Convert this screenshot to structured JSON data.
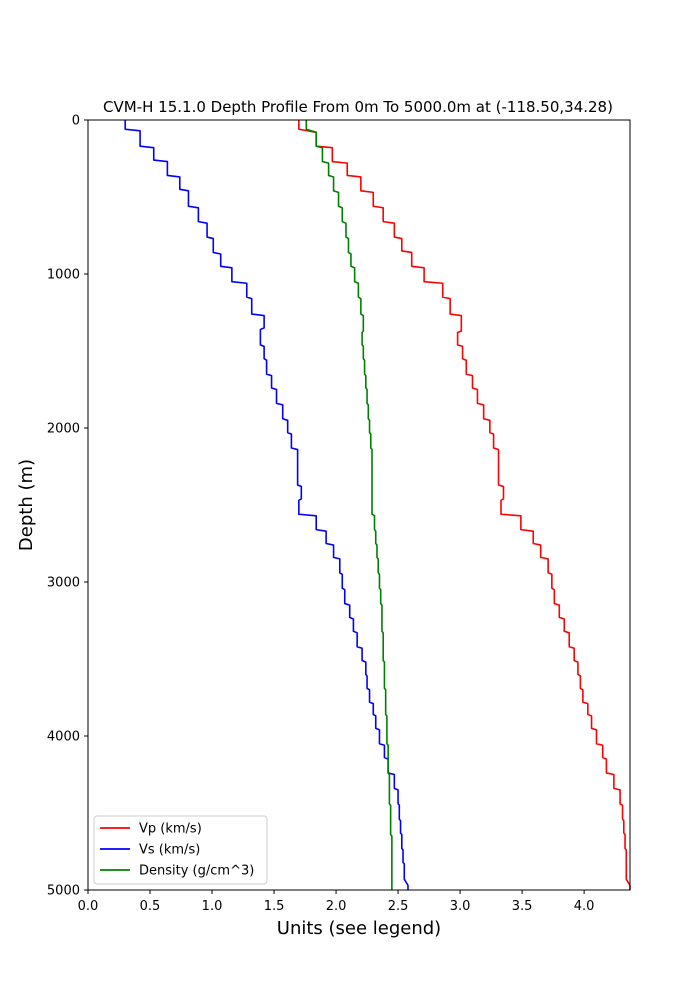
{
  "chart_data": {
    "type": "line",
    "title": "CVM-H 15.1.0 Depth Profile From 0m To 5000.0m at (-118.50,34.28)",
    "xlabel": "Units (see legend)",
    "ylabel": "Depth (m)",
    "xlim": [
      0.0,
      4.37
    ],
    "ylim": [
      5000,
      0
    ],
    "y_inverted": true,
    "grid": false,
    "legend_position": "lower-left",
    "xticks": [
      "0.0",
      "0.5",
      "1.0",
      "1.5",
      "2.0",
      "2.5",
      "3.0",
      "3.5",
      "4.0"
    ],
    "yticks": [
      "0",
      "1000",
      "2000",
      "3000",
      "4000",
      "5000"
    ],
    "series": [
      {
        "name": "Vp (km/s)",
        "color": "#ff0000",
        "points": [
          [
            1.7,
            0
          ],
          [
            1.7,
            60
          ],
          [
            1.84,
            80
          ],
          [
            1.84,
            170
          ],
          [
            1.97,
            180
          ],
          [
            1.97,
            270
          ],
          [
            2.09,
            280
          ],
          [
            2.09,
            360
          ],
          [
            2.2,
            370
          ],
          [
            2.2,
            460
          ],
          [
            2.3,
            470
          ],
          [
            2.3,
            560
          ],
          [
            2.38,
            570
          ],
          [
            2.38,
            660
          ],
          [
            2.47,
            670
          ],
          [
            2.47,
            760
          ],
          [
            2.53,
            770
          ],
          [
            2.53,
            850
          ],
          [
            2.61,
            860
          ],
          [
            2.61,
            950
          ],
          [
            2.71,
            960
          ],
          [
            2.71,
            1050
          ],
          [
            2.86,
            1060
          ],
          [
            2.86,
            1150
          ],
          [
            2.92,
            1160
          ],
          [
            2.92,
            1260
          ],
          [
            3.01,
            1270
          ],
          [
            3.01,
            1370
          ],
          [
            2.98,
            1380
          ],
          [
            2.98,
            1460
          ],
          [
            3.02,
            1470
          ],
          [
            3.02,
            1550
          ],
          [
            3.05,
            1560
          ],
          [
            3.05,
            1650
          ],
          [
            3.1,
            1660
          ],
          [
            3.1,
            1740
          ],
          [
            3.14,
            1750
          ],
          [
            3.14,
            1840
          ],
          [
            3.19,
            1850
          ],
          [
            3.19,
            1940
          ],
          [
            3.24,
            1950
          ],
          [
            3.24,
            2030
          ],
          [
            3.27,
            2040
          ],
          [
            3.27,
            2130
          ],
          [
            3.31,
            2140
          ],
          [
            3.31,
            2370
          ],
          [
            3.35,
            2380
          ],
          [
            3.35,
            2460
          ],
          [
            3.33,
            2470
          ],
          [
            3.33,
            2560
          ],
          [
            3.49,
            2570
          ],
          [
            3.49,
            2660
          ],
          [
            3.59,
            2670
          ],
          [
            3.59,
            2750
          ],
          [
            3.65,
            2760
          ],
          [
            3.65,
            2840
          ],
          [
            3.71,
            2850
          ],
          [
            3.71,
            2940
          ],
          [
            3.74,
            2950
          ],
          [
            3.74,
            3040
          ],
          [
            3.76,
            3050
          ],
          [
            3.76,
            3140
          ],
          [
            3.8,
            3150
          ],
          [
            3.8,
            3230
          ],
          [
            3.84,
            3240
          ],
          [
            3.84,
            3320
          ],
          [
            3.88,
            3330
          ],
          [
            3.88,
            3420
          ],
          [
            3.92,
            3430
          ],
          [
            3.92,
            3510
          ],
          [
            3.95,
            3520
          ],
          [
            3.95,
            3600
          ],
          [
            3.97,
            3610
          ],
          [
            3.97,
            3690
          ],
          [
            3.99,
            3700
          ],
          [
            3.99,
            3780
          ],
          [
            4.03,
            3790
          ],
          [
            4.03,
            3860
          ],
          [
            4.06,
            3870
          ],
          [
            4.06,
            3950
          ],
          [
            4.1,
            3960
          ],
          [
            4.1,
            4050
          ],
          [
            4.15,
            4060
          ],
          [
            4.15,
            4140
          ],
          [
            4.18,
            4150
          ],
          [
            4.18,
            4240
          ],
          [
            4.24,
            4250
          ],
          [
            4.24,
            4340
          ],
          [
            4.29,
            4350
          ],
          [
            4.29,
            4440
          ],
          [
            4.31,
            4450
          ],
          [
            4.31,
            4540
          ],
          [
            4.32,
            4550
          ],
          [
            4.32,
            4630
          ],
          [
            4.33,
            4640
          ],
          [
            4.33,
            4730
          ],
          [
            4.34,
            4740
          ],
          [
            4.34,
            4820
          ],
          [
            4.34,
            4830
          ],
          [
            4.34,
            4930
          ],
          [
            4.37,
            4970
          ],
          [
            4.37,
            5000
          ]
        ]
      },
      {
        "name": "Vs (km/s)",
        "color": "#0000ff",
        "points": [
          [
            0.3,
            0
          ],
          [
            0.3,
            60
          ],
          [
            0.42,
            70
          ],
          [
            0.42,
            170
          ],
          [
            0.53,
            180
          ],
          [
            0.53,
            260
          ],
          [
            0.64,
            270
          ],
          [
            0.64,
            360
          ],
          [
            0.74,
            370
          ],
          [
            0.74,
            450
          ],
          [
            0.81,
            460
          ],
          [
            0.81,
            560
          ],
          [
            0.89,
            570
          ],
          [
            0.89,
            660
          ],
          [
            0.96,
            670
          ],
          [
            0.96,
            760
          ],
          [
            1.01,
            770
          ],
          [
            1.01,
            860
          ],
          [
            1.07,
            870
          ],
          [
            1.07,
            950
          ],
          [
            1.16,
            960
          ],
          [
            1.16,
            1050
          ],
          [
            1.28,
            1060
          ],
          [
            1.28,
            1150
          ],
          [
            1.32,
            1160
          ],
          [
            1.32,
            1260
          ],
          [
            1.42,
            1270
          ],
          [
            1.42,
            1350
          ],
          [
            1.39,
            1360
          ],
          [
            1.39,
            1460
          ],
          [
            1.42,
            1470
          ],
          [
            1.42,
            1550
          ],
          [
            1.44,
            1560
          ],
          [
            1.44,
            1650
          ],
          [
            1.48,
            1660
          ],
          [
            1.48,
            1740
          ],
          [
            1.52,
            1750
          ],
          [
            1.52,
            1840
          ],
          [
            1.57,
            1850
          ],
          [
            1.57,
            1940
          ],
          [
            1.61,
            1950
          ],
          [
            1.61,
            2030
          ],
          [
            1.64,
            2040
          ],
          [
            1.64,
            2130
          ],
          [
            1.69,
            2140
          ],
          [
            1.69,
            2370
          ],
          [
            1.72,
            2380
          ],
          [
            1.72,
            2460
          ],
          [
            1.7,
            2470
          ],
          [
            1.7,
            2560
          ],
          [
            1.84,
            2570
          ],
          [
            1.84,
            2660
          ],
          [
            1.92,
            2670
          ],
          [
            1.92,
            2750
          ],
          [
            1.98,
            2760
          ],
          [
            1.98,
            2840
          ],
          [
            2.03,
            2850
          ],
          [
            2.03,
            2940
          ],
          [
            2.05,
            2950
          ],
          [
            2.05,
            3040
          ],
          [
            2.07,
            3050
          ],
          [
            2.07,
            3140
          ],
          [
            2.11,
            3150
          ],
          [
            2.11,
            3230
          ],
          [
            2.14,
            3240
          ],
          [
            2.14,
            3320
          ],
          [
            2.17,
            3330
          ],
          [
            2.17,
            3420
          ],
          [
            2.21,
            3430
          ],
          [
            2.21,
            3510
          ],
          [
            2.24,
            3520
          ],
          [
            2.24,
            3600
          ],
          [
            2.25,
            3610
          ],
          [
            2.25,
            3690
          ],
          [
            2.27,
            3700
          ],
          [
            2.27,
            3780
          ],
          [
            2.3,
            3790
          ],
          [
            2.3,
            3860
          ],
          [
            2.32,
            3870
          ],
          [
            2.32,
            3950
          ],
          [
            2.35,
            3960
          ],
          [
            2.35,
            4050
          ],
          [
            2.39,
            4060
          ],
          [
            2.39,
            4140
          ],
          [
            2.42,
            4150
          ],
          [
            2.42,
            4240
          ],
          [
            2.47,
            4250
          ],
          [
            2.47,
            4340
          ],
          [
            2.5,
            4350
          ],
          [
            2.5,
            4440
          ],
          [
            2.51,
            4450
          ],
          [
            2.51,
            4540
          ],
          [
            2.52,
            4550
          ],
          [
            2.52,
            4630
          ],
          [
            2.53,
            4640
          ],
          [
            2.53,
            4730
          ],
          [
            2.54,
            4740
          ],
          [
            2.54,
            4820
          ],
          [
            2.55,
            4830
          ],
          [
            2.55,
            4930
          ],
          [
            2.58,
            4970
          ],
          [
            2.58,
            5000
          ]
        ]
      },
      {
        "name": "Density (g/cm^3)",
        "color": "#008000",
        "points": [
          [
            1.76,
            0
          ],
          [
            1.76,
            60
          ],
          [
            1.84,
            80
          ],
          [
            1.84,
            170
          ],
          [
            1.89,
            180
          ],
          [
            1.89,
            270
          ],
          [
            1.94,
            280
          ],
          [
            1.94,
            360
          ],
          [
            1.98,
            370
          ],
          [
            1.98,
            460
          ],
          [
            2.02,
            470
          ],
          [
            2.02,
            560
          ],
          [
            2.05,
            570
          ],
          [
            2.05,
            660
          ],
          [
            2.08,
            670
          ],
          [
            2.08,
            760
          ],
          [
            2.1,
            770
          ],
          [
            2.1,
            860
          ],
          [
            2.12,
            870
          ],
          [
            2.12,
            950
          ],
          [
            2.15,
            960
          ],
          [
            2.15,
            1050
          ],
          [
            2.18,
            1060
          ],
          [
            2.18,
            1150
          ],
          [
            2.2,
            1160
          ],
          [
            2.2,
            1260
          ],
          [
            2.22,
            1270
          ],
          [
            2.22,
            1370
          ],
          [
            2.21,
            1380
          ],
          [
            2.21,
            1460
          ],
          [
            2.22,
            1470
          ],
          [
            2.22,
            1550
          ],
          [
            2.23,
            1560
          ],
          [
            2.23,
            1650
          ],
          [
            2.24,
            1660
          ],
          [
            2.24,
            1740
          ],
          [
            2.25,
            1750
          ],
          [
            2.25,
            1840
          ],
          [
            2.26,
            1850
          ],
          [
            2.26,
            1940
          ],
          [
            2.27,
            1950
          ],
          [
            2.27,
            2030
          ],
          [
            2.28,
            2040
          ],
          [
            2.28,
            2130
          ],
          [
            2.29,
            2140
          ],
          [
            2.29,
            2560
          ],
          [
            2.31,
            2570
          ],
          [
            2.31,
            2660
          ],
          [
            2.32,
            2670
          ],
          [
            2.32,
            2750
          ],
          [
            2.33,
            2760
          ],
          [
            2.33,
            2840
          ],
          [
            2.34,
            2850
          ],
          [
            2.34,
            2940
          ],
          [
            2.35,
            2950
          ],
          [
            2.35,
            3040
          ],
          [
            2.36,
            3050
          ],
          [
            2.36,
            3140
          ],
          [
            2.37,
            3150
          ],
          [
            2.37,
            3320
          ],
          [
            2.38,
            3330
          ],
          [
            2.38,
            3510
          ],
          [
            2.39,
            3520
          ],
          [
            2.39,
            3690
          ],
          [
            2.4,
            3700
          ],
          [
            2.4,
            3860
          ],
          [
            2.41,
            3870
          ],
          [
            2.41,
            4050
          ],
          [
            2.42,
            4060
          ],
          [
            2.42,
            4240
          ],
          [
            2.43,
            4250
          ],
          [
            2.43,
            4440
          ],
          [
            2.44,
            4450
          ],
          [
            2.44,
            4640
          ],
          [
            2.45,
            4650
          ],
          [
            2.45,
            5000
          ]
        ]
      }
    ]
  }
}
